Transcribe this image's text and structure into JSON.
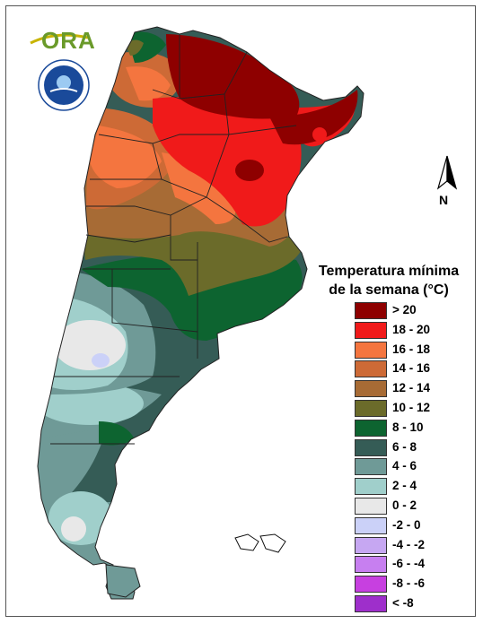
{
  "legend": {
    "title_line1": "Temperatura mínima",
    "title_line2": "de la semana (°C)",
    "items": [
      {
        "label": "> 20",
        "color": "#8e0000"
      },
      {
        "label": "18 - 20",
        "color": "#f01a1a"
      },
      {
        "label": "16 - 18",
        "color": "#f4753f"
      },
      {
        "label": "14 - 16",
        "color": "#cd6a36"
      },
      {
        "label": "12 - 14",
        "color": "#a76b35"
      },
      {
        "label": "10 - 12",
        "color": "#6b6b2a"
      },
      {
        "label": "8 - 10",
        "color": "#0d6430"
      },
      {
        "label": "6 - 8",
        "color": "#355c56"
      },
      {
        "label": "4 - 6",
        "color": "#6f9a97"
      },
      {
        "label": "2 - 4",
        "color": "#a0cfcb"
      },
      {
        "label": "0 - 2",
        "color": "#e8e8e8"
      },
      {
        "label": "-2 - 0",
        "color": "#cbd1f8"
      },
      {
        "label": "-4 - -2",
        "color": "#c6a7f2"
      },
      {
        "label": "-6 - -4",
        "color": "#c77ff0"
      },
      {
        "label": "-8 - -6",
        "color": "#c740e0"
      },
      {
        "label": "< -8",
        "color": "#9e2fcb"
      }
    ]
  },
  "north_label": "N",
  "logo_ora": "ORA",
  "logo_smn": "SERVICIO METEOROLOGICO NACIONAL ARGENTINA"
}
